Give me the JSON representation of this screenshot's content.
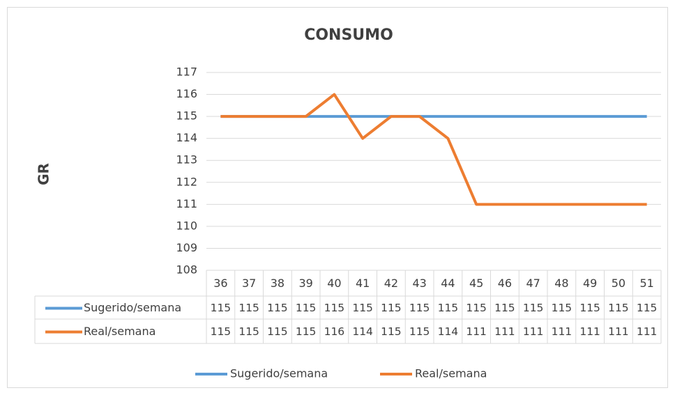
{
  "chart_data": {
    "type": "line",
    "title": "CONSUMO",
    "y_label": "GR",
    "categories": [
      "36",
      "37",
      "38",
      "39",
      "40",
      "41",
      "42",
      "43",
      "44",
      "45",
      "46",
      "47",
      "48",
      "49",
      "50",
      "51"
    ],
    "series": [
      {
        "name": "Sugerido/semana",
        "color": "#5b9bd5",
        "values": [
          115,
          115,
          115,
          115,
          115,
          115,
          115,
          115,
          115,
          115,
          115,
          115,
          115,
          115,
          115,
          115
        ]
      },
      {
        "name": "Real/semana",
        "color": "#ed7d31",
        "values": [
          115,
          115,
          115,
          115,
          116,
          114,
          115,
          115,
          114,
          111,
          111,
          111,
          111,
          111,
          111,
          111
        ]
      }
    ],
    "ylim": [
      108,
      117
    ],
    "yticks": [
      108,
      109,
      110,
      111,
      112,
      113,
      114,
      115,
      116,
      117
    ],
    "grid": true,
    "legend": "bottom",
    "data_table": true
  }
}
